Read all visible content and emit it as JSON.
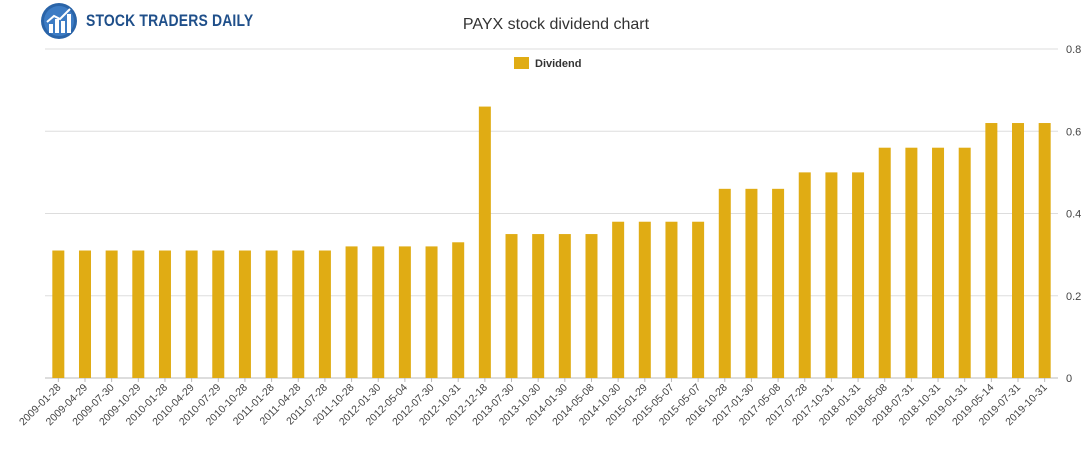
{
  "logo": {
    "text": "STOCK TRADERS DAILY",
    "icon": "chart-globe-logo"
  },
  "chart_data": {
    "type": "bar",
    "title": "PAYX stock dividend chart",
    "xlabel": "",
    "ylabel": "",
    "ylim": [
      0,
      0.8
    ],
    "y_ticks": [
      "0",
      "0.2",
      "0.4",
      "0.6",
      "0.8"
    ],
    "y_axis_side": "right",
    "grid": true,
    "legend_position": "top-center",
    "color": "#e0ac14",
    "categories": [
      "2009-01-28",
      "2009-04-29",
      "2009-07-30",
      "2009-10-29",
      "2010-01-28",
      "2010-04-29",
      "2010-07-29",
      "2010-10-28",
      "2011-01-28",
      "2011-04-28",
      "2011-07-28",
      "2011-10-28",
      "2012-01-30",
      "2012-05-04",
      "2012-07-30",
      "2012-10-31",
      "2012-12-18",
      "2013-07-30",
      "2013-10-30",
      "2014-01-30",
      "2014-05-08",
      "2014-10-30",
      "2015-01-29",
      "2015-05-07",
      "2015-05-07",
      "2016-10-28",
      "2017-01-30",
      "2017-05-08",
      "2017-07-28",
      "2017-10-31",
      "2018-01-31",
      "2018-05-08",
      "2018-07-31",
      "2018-10-31",
      "2019-01-31",
      "2019-05-14",
      "2019-07-31",
      "2019-10-31"
    ],
    "series": [
      {
        "name": "Dividend",
        "values": [
          0.31,
          0.31,
          0.31,
          0.31,
          0.31,
          0.31,
          0.31,
          0.31,
          0.31,
          0.31,
          0.31,
          0.32,
          0.32,
          0.32,
          0.32,
          0.33,
          0.66,
          0.35,
          0.35,
          0.35,
          0.35,
          0.38,
          0.38,
          0.38,
          0.38,
          0.46,
          0.46,
          0.46,
          0.5,
          0.5,
          0.5,
          0.56,
          0.56,
          0.56,
          0.56,
          0.62,
          0.62,
          0.62
        ]
      }
    ]
  }
}
